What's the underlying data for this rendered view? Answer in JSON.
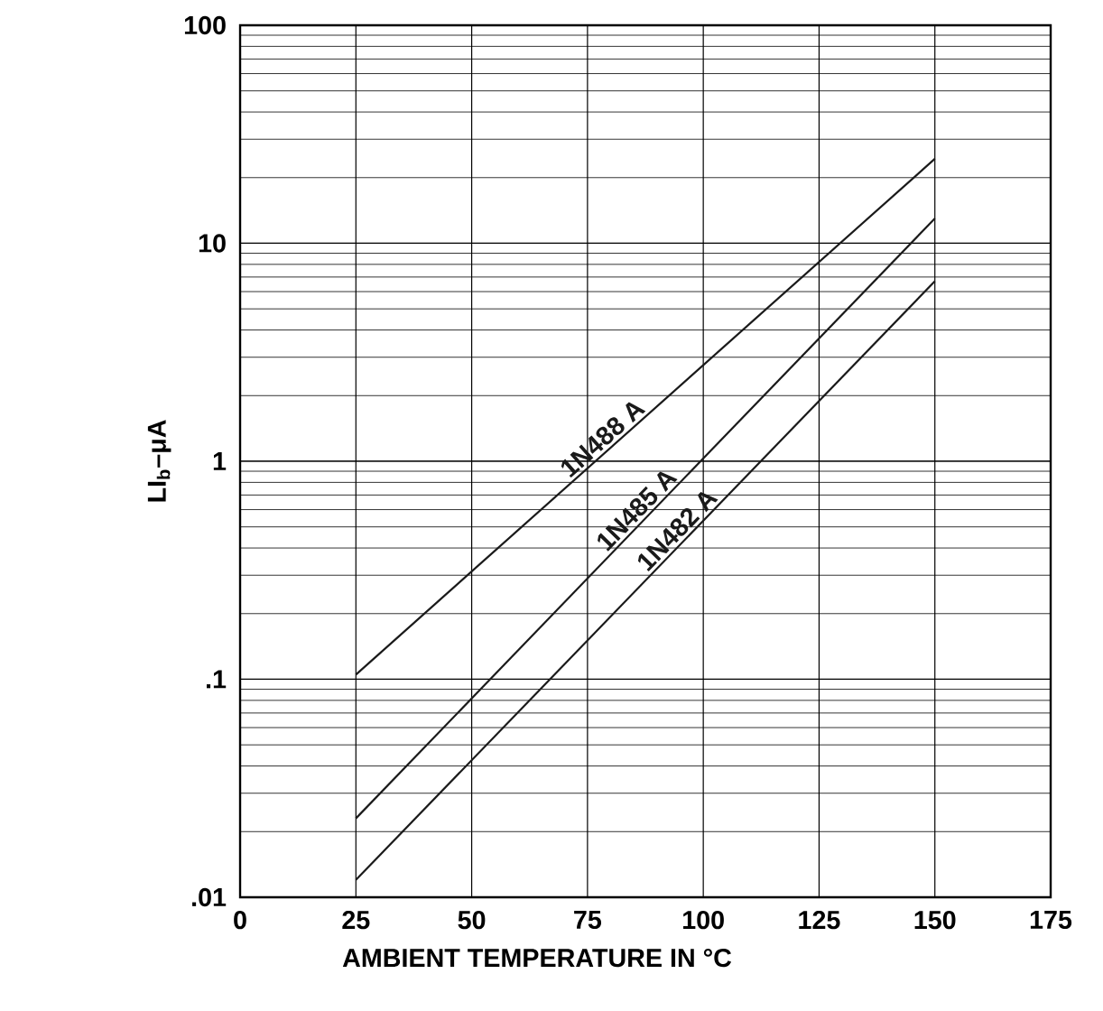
{
  "chart_data": {
    "type": "line",
    "xlabel": "AMBIENT TEMPERATURE IN °C",
    "ylabel": "LI$_{b}$–μA",
    "x": [
      25,
      150
    ],
    "series": [
      {
        "name": "1N488 A",
        "color": "#1a1a1a",
        "values": [
          0.105,
          24.4
        ]
      },
      {
        "name": "1N485 A",
        "color": "#1a1a1a",
        "values": [
          0.023,
          13
        ]
      },
      {
        "name": "1N482 A",
        "color": "#1a1a1a",
        "values": [
          0.012,
          6.7
        ]
      }
    ],
    "log": "y",
    "grid": true,
    "marker": "none",
    "line_style": "solid",
    "xlim": [
      0,
      175
    ],
    "xticks": [
      0,
      25,
      50,
      75,
      100,
      125,
      150,
      175
    ],
    "ylim": [
      0.01,
      100
    ],
    "yticks": [
      {
        "value": 0.01,
        "label": ".01"
      },
      {
        "value": 0.1,
        "label": ".1"
      },
      1,
      10,
      100
    ]
  }
}
